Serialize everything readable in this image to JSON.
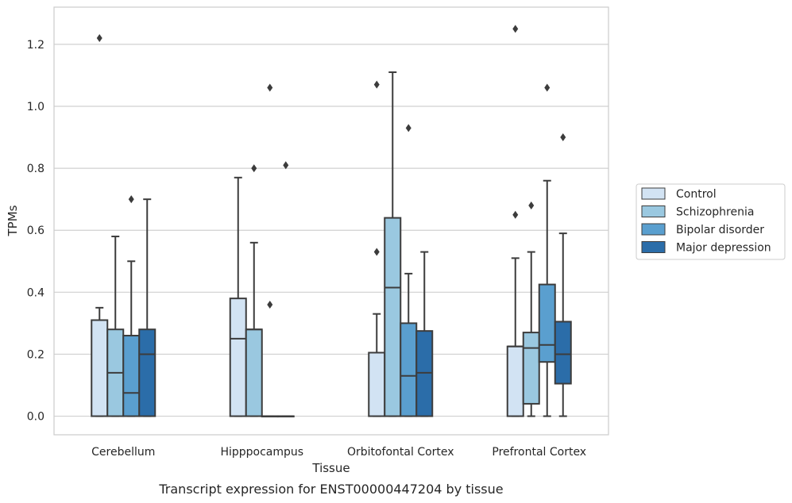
{
  "chart_data": {
    "type": "box",
    "xlabel": "Tissue",
    "ylabel": "TPMs",
    "caption": "Transcript expression for ENST00000447204 by tissue",
    "ylim": [
      -0.06,
      1.32
    ],
    "yticks": [
      "0.0",
      "0.2",
      "0.4",
      "0.6",
      "0.8",
      "1.0",
      "1.2"
    ],
    "grid": "horizontal",
    "legend_placement": "right",
    "categories": [
      "Cerebellum",
      "Hipppocampus",
      "Orbitofontal Cortex",
      "Prefrontal Cortex"
    ],
    "series": [
      {
        "name": "Control",
        "color": "#d2e3f3",
        "boxes": [
          {
            "whisker_low": 0,
            "q1": 0,
            "median": 0.31,
            "q3": 0.31,
            "whisker_high": 0.35,
            "outliers": [
              1.22
            ]
          },
          {
            "whisker_low": 0,
            "q1": 0,
            "median": 0.25,
            "q3": 0.38,
            "whisker_high": 0.77,
            "outliers": []
          },
          {
            "whisker_low": 0,
            "q1": 0,
            "median": 0.205,
            "q3": 0.205,
            "whisker_high": 0.33,
            "outliers": [
              0.53,
              1.07
            ]
          },
          {
            "whisker_low": 0,
            "q1": 0,
            "median": 0.225,
            "q3": 0.225,
            "whisker_high": 0.51,
            "outliers": [
              0.65,
              1.25
            ]
          }
        ]
      },
      {
        "name": "Schizophrenia",
        "color": "#9ac8e0",
        "boxes": [
          {
            "whisker_low": 0,
            "q1": 0,
            "median": 0.14,
            "q3": 0.28,
            "whisker_high": 0.58,
            "outliers": []
          },
          {
            "whisker_low": 0,
            "q1": 0,
            "median": 0.28,
            "q3": 0.28,
            "whisker_high": 0.56,
            "outliers": [
              0.8
            ]
          },
          {
            "whisker_low": 0,
            "q1": 0,
            "median": 0.415,
            "q3": 0.64,
            "whisker_high": 1.11,
            "outliers": []
          },
          {
            "whisker_low": 0,
            "q1": 0.04,
            "median": 0.22,
            "q3": 0.27,
            "whisker_high": 0.53,
            "outliers": [
              0.68
            ]
          }
        ]
      },
      {
        "name": "Bipolar disorder",
        "color": "#5a9fcf",
        "boxes": [
          {
            "whisker_low": 0,
            "q1": 0,
            "median": 0.075,
            "q3": 0.26,
            "whisker_high": 0.5,
            "outliers": [
              0.7
            ]
          },
          {
            "whisker_low": 0,
            "q1": 0,
            "median": 0,
            "q3": 0,
            "whisker_high": 0,
            "outliers": [
              0.36,
              1.06
            ]
          },
          {
            "whisker_low": 0,
            "q1": 0,
            "median": 0.13,
            "q3": 0.3,
            "whisker_high": 0.46,
            "outliers": [
              0.93
            ]
          },
          {
            "whisker_low": 0,
            "q1": 0.175,
            "median": 0.23,
            "q3": 0.425,
            "whisker_high": 0.76,
            "outliers": [
              1.06
            ]
          }
        ]
      },
      {
        "name": "Major depression",
        "color": "#2b6da9",
        "boxes": [
          {
            "whisker_low": 0,
            "q1": 0,
            "median": 0.2,
            "q3": 0.28,
            "whisker_high": 0.7,
            "outliers": []
          },
          {
            "whisker_low": 0,
            "q1": 0,
            "median": 0,
            "q3": 0,
            "whisker_high": 0,
            "outliers": [
              0.81
            ]
          },
          {
            "whisker_low": 0,
            "q1": 0,
            "median": 0.14,
            "q3": 0.275,
            "whisker_high": 0.53,
            "outliers": []
          },
          {
            "whisker_low": 0,
            "q1": 0.105,
            "median": 0.2,
            "q3": 0.305,
            "whisker_high": 0.59,
            "outliers": [
              0.9
            ]
          }
        ]
      }
    ]
  }
}
